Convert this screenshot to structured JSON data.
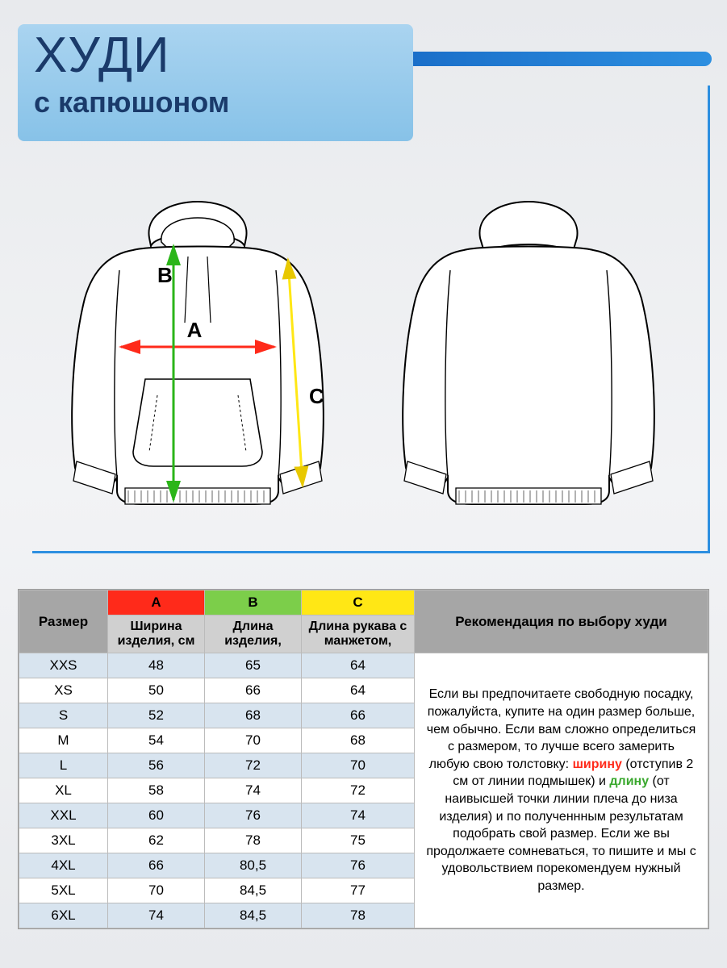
{
  "title": {
    "main": "ХУДИ",
    "sub": "с капюшоном"
  },
  "dims": {
    "A": {
      "label": "A",
      "color_arrow": "#ff2a1a",
      "header_bg": "#ff2a1a"
    },
    "B": {
      "label": "B",
      "color_arrow": "#2bb519",
      "header_bg": "#7cce4a"
    },
    "C": {
      "label": "C",
      "color_arrow": "#ffe715",
      "header_bg": "#ffe715"
    }
  },
  "table": {
    "columns": {
      "size": "Размер",
      "A": "Ширина изделия, см",
      "B": "Длина изделия,",
      "C": "Длина рукава с манжетом,",
      "rec": "Рекомендация по выбору худи"
    },
    "rows": [
      {
        "size": "XXS",
        "A": "48",
        "B": "65",
        "C": "64"
      },
      {
        "size": "XS",
        "A": "50",
        "B": "66",
        "C": "64"
      },
      {
        "size": "S",
        "A": "52",
        "B": "68",
        "C": "66"
      },
      {
        "size": "M",
        "A": "54",
        "B": "70",
        "C": "68"
      },
      {
        "size": "L",
        "A": "56",
        "B": "72",
        "C": "70"
      },
      {
        "size": "XL",
        "A": "58",
        "B": "74",
        "C": "72"
      },
      {
        "size": "XXL",
        "A": "60",
        "B": "76",
        "C": "74"
      },
      {
        "size": "3XL",
        "A": "62",
        "B": "78",
        "C": "75"
      },
      {
        "size": "4XL",
        "A": "66",
        "B": "80,5",
        "C": "76"
      },
      {
        "size": "5XL",
        "A": "70",
        "B": "84,5",
        "C": "77"
      },
      {
        "size": "6XL",
        "A": "74",
        "B": "84,5",
        "C": "78"
      }
    ],
    "row_alt_bg": [
      "#d8e4ef",
      "#ffffff"
    ],
    "recommendation": {
      "pre": "Если вы предпочитаете свободную посадку, пожалуйста, купите на один размер больше, чем обычно. Если вам сложно определиться с размером, то лучше всего замерить любую свою толстовку:  ",
      "word1": "ширину",
      "mid1": " (отступив 2 см от линии подмышек) и ",
      "word2": "длину",
      "mid2": " (от наивысшей точки линии плеча  до низа изделия) и по полученнным результатам подобрать свой размер. Если же вы продолжаете сомневаться, то пишите и мы с удовольствием порекомендуем нужный размер."
    }
  },
  "style": {
    "accent_blue": "#2d8fe0",
    "title_bg_top": "#aad4f0",
    "title_bg_bottom": "#87c2e8",
    "title_text": "#1a3a6a",
    "page_bg": "#eceef1",
    "body_font": "Arial"
  }
}
